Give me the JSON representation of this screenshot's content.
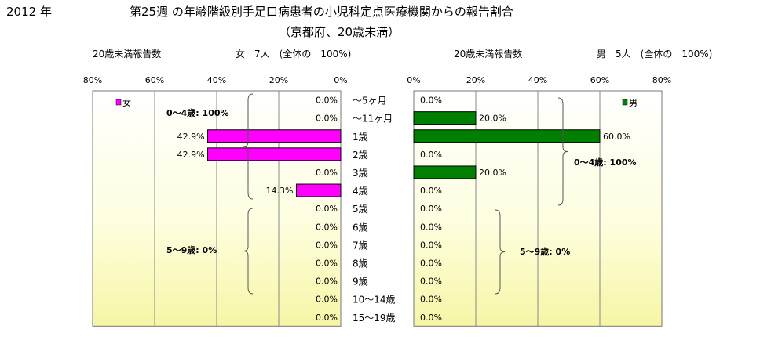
{
  "year_label": "2012 年",
  "title": "第25週 の年齢階級別手足口病患者の小児科定点医療機関からの報告割合",
  "subtitle": "（京都府、20歳未満）",
  "left_header": {
    "count_label": "20歳未満報告数",
    "summary": "女　7人　(全体の　100%)"
  },
  "right_header": {
    "count_label": "20歳未満報告数",
    "summary": "男　5人　(全体の　100%)"
  },
  "colors": {
    "female": "#ff00ff",
    "male": "#007f00",
    "bracket": "#555555"
  },
  "chart_data": [
    {
      "type": "bar",
      "orientation": "horizontal",
      "direction": "right-to-left",
      "categories": [
        "～5ヶ月",
        "～11ヶ月",
        "1歳",
        "2歳",
        "3歳",
        "4歳",
        "5歳",
        "6歳",
        "7歳",
        "8歳",
        "9歳",
        "10～14歳",
        "15～19歳"
      ],
      "series": [
        {
          "name": "女",
          "values": [
            0,
            0,
            42.9,
            42.9,
            0,
            14.3,
            0,
            0,
            0,
            0,
            0,
            0,
            0
          ]
        }
      ],
      "value_labels": [
        "0.0%",
        "0.0%",
        "42.9%",
        "42.9%",
        "0.0%",
        "14.3%",
        "0.0%",
        "0.0%",
        "0.0%",
        "0.0%",
        "0.0%",
        "0.0%",
        "0.0%"
      ],
      "xlim": [
        0,
        80
      ],
      "ticks": [
        "80%",
        "60%",
        "40%",
        "20%",
        "0%"
      ],
      "legend": "top-left",
      "annotations": [
        "0～4歳: 100%",
        "5～9歳:  0%"
      ]
    },
    {
      "type": "bar",
      "orientation": "horizontal",
      "direction": "left-to-right",
      "categories": [
        "～5ヶ月",
        "～11ヶ月",
        "1歳",
        "2歳",
        "3歳",
        "4歳",
        "5歳",
        "6歳",
        "7歳",
        "8歳",
        "9歳",
        "10～14歳",
        "15～19歳"
      ],
      "series": [
        {
          "name": "男",
          "values": [
            0,
            20,
            60,
            0,
            20,
            0,
            0,
            0,
            0,
            0,
            0,
            0,
            0
          ]
        }
      ],
      "value_labels": [
        "0.0%",
        "20.0%",
        "60.0%",
        "0.0%",
        "20.0%",
        "0.0%",
        "0.0%",
        "0.0%",
        "0.0%",
        "0.0%",
        "0.0%",
        "0.0%",
        "0.0%"
      ],
      "xlim": [
        0,
        80
      ],
      "ticks": [
        "0%",
        "20%",
        "40%",
        "60%",
        "80%"
      ],
      "legend": "top-right",
      "annotations": [
        "0～4歳: 100%",
        "5～9歳:  0%"
      ]
    }
  ]
}
